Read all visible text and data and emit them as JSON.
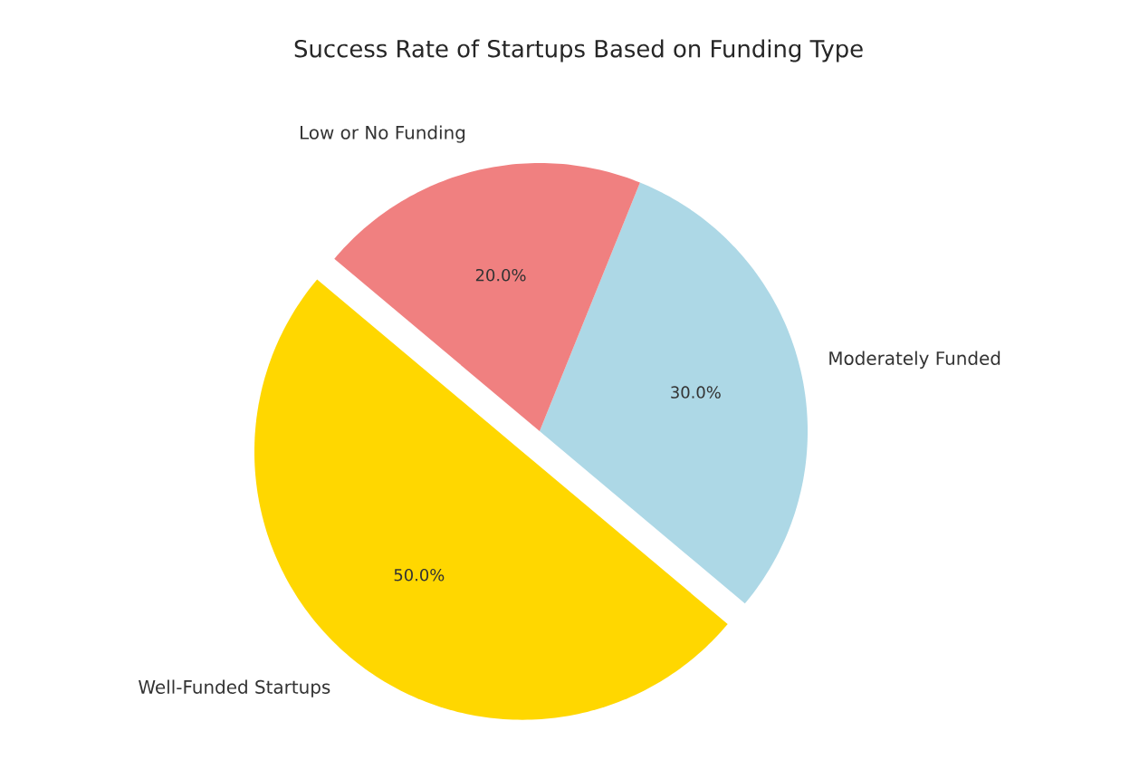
{
  "chart_data": {
    "type": "pie",
    "title": "Success Rate of Startups Based on Funding Type",
    "categories": [
      "Well-Funded Startups",
      "Moderately Funded",
      "Low or No Funding"
    ],
    "values": [
      50,
      30,
      20
    ],
    "colors": [
      "#ffd700",
      "#add8e6",
      "#f08080"
    ],
    "value_labels": [
      "50.0%",
      "30.0%",
      "20.0%"
    ]
  }
}
